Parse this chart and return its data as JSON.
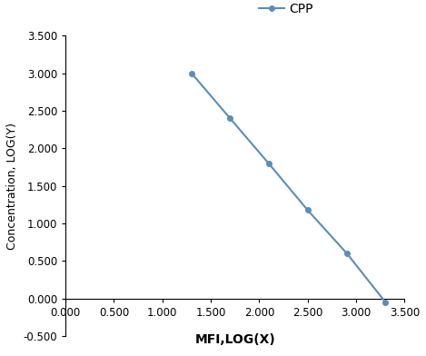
{
  "x": [
    1.301,
    1.699,
    2.097,
    2.5,
    2.903,
    3.301
  ],
  "y": [
    3.0,
    2.398,
    1.799,
    1.176,
    0.602,
    -0.046
  ],
  "line_color": "#5b8db8",
  "marker_color": "#5b8db8",
  "marker_style": "o",
  "marker_size": 4,
  "line_width": 1.5,
  "xlabel": "MFI,LOG(X)",
  "ylabel": "Concentration, LOG(Y)",
  "xlim": [
    0.0,
    3.5
  ],
  "ylim": [
    -0.5,
    3.5
  ],
  "xticks": [
    0.0,
    0.5,
    1.0,
    1.5,
    2.0,
    2.5,
    3.0,
    3.5
  ],
  "yticks": [
    -0.5,
    0.0,
    0.5,
    1.0,
    1.5,
    2.0,
    2.5,
    3.0,
    3.5
  ],
  "legend_label": "CPP",
  "xlabel_fontsize": 10,
  "ylabel_fontsize": 9,
  "tick_fontsize": 8.5,
  "legend_fontsize": 10,
  "background_color": "#ffffff"
}
